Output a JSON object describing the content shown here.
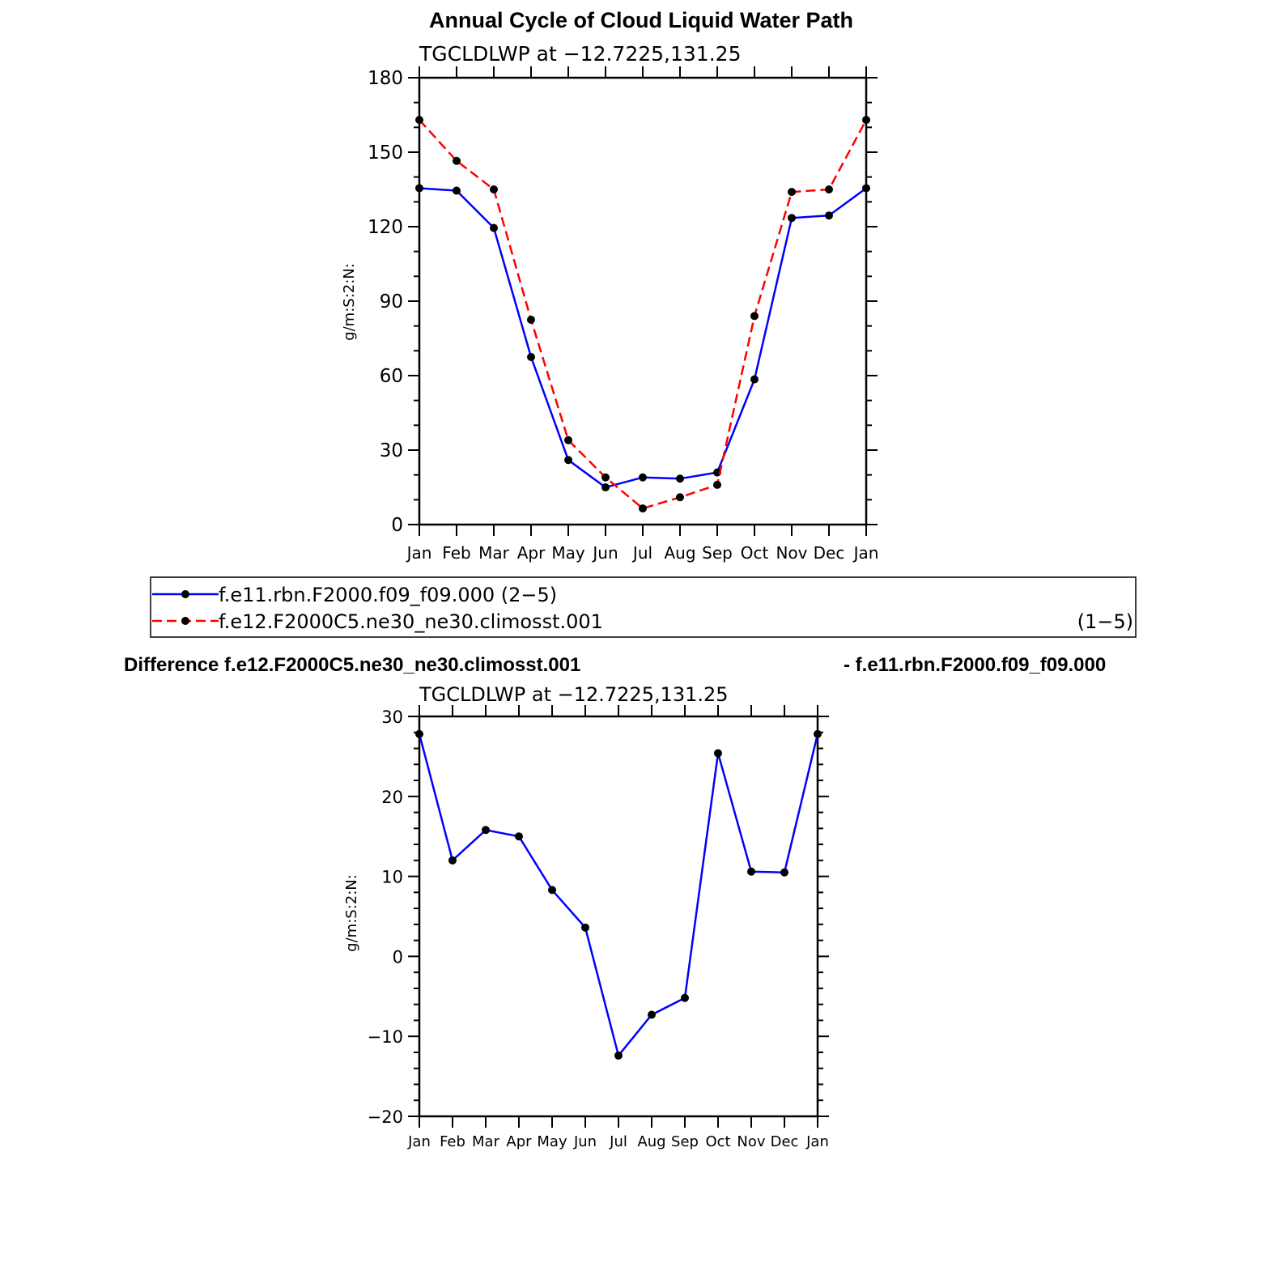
{
  "title": "Annual Cycle of Cloud Liquid Water Path",
  "legend": {
    "placement": "below-top-chart",
    "entries": [
      {
        "label": "f.e11.rbn.F2000.f09_f09.000 (2−5)",
        "right_note": ""
      },
      {
        "label": "f.e12.F2000C5.ne30_ne30.climosst.001",
        "right_note": "(1−5)"
      }
    ]
  },
  "diff_title": {
    "left": "Difference f.e12.F2000C5.ne30_ne30.climosst.001",
    "right": "- f.e11.rbn.F2000.f09_f09.000"
  },
  "colors": {
    "series1": "#0000ff",
    "series2": "#ff0000",
    "marker": "#000000",
    "axis": "#000000"
  },
  "chart_data": [
    {
      "type": "line",
      "subtitle": "TGCLDLWP at −12.7225,131.25",
      "xlabel": "",
      "ylabel": "g/m:S:2:N:",
      "categories": [
        "Jan",
        "Feb",
        "Mar",
        "Apr",
        "May",
        "Jun",
        "Jul",
        "Aug",
        "Sep",
        "Oct",
        "Nov",
        "Dec",
        "Jan"
      ],
      "ylim": [
        0,
        180
      ],
      "yticks": [
        0,
        30,
        60,
        90,
        120,
        150,
        180
      ],
      "ytick_labels": [
        "0",
        "30",
        "60",
        "90",
        "120",
        "150",
        "180"
      ],
      "grid": false,
      "series": [
        {
          "values": [
            135.5,
            134.5,
            119.5,
            67.5,
            26.0,
            15.0,
            19.0,
            18.5,
            21.0,
            58.5,
            123.5,
            124.5,
            135.5
          ]
        },
        {
          "values": [
            163.0,
            146.5,
            135.0,
            82.5,
            34.0,
            19.0,
            6.5,
            11.0,
            16.0,
            84.0,
            134.0,
            135.0,
            163.0
          ]
        }
      ]
    },
    {
      "type": "line",
      "subtitle": "TGCLDLWP at −12.7225,131.25",
      "xlabel": "",
      "ylabel": "g/m:S:2:N:",
      "categories": [
        "Jan",
        "Feb",
        "Mar",
        "Apr",
        "May",
        "Jun",
        "Jul",
        "Aug",
        "Sep",
        "Oct",
        "Nov",
        "Dec",
        "Jan"
      ],
      "ylim": [
        -20,
        30
      ],
      "yticks": [
        -20,
        -10,
        0,
        10,
        20,
        30
      ],
      "ytick_labels": [
        "−20",
        "−10",
        "0",
        "10",
        "20",
        "30"
      ],
      "grid": false,
      "series": [
        {
          "values": [
            27.8,
            12.0,
            15.8,
            15.0,
            8.3,
            3.6,
            -12.4,
            -7.3,
            -5.2,
            25.4,
            10.6,
            10.5,
            27.8
          ]
        }
      ]
    }
  ]
}
